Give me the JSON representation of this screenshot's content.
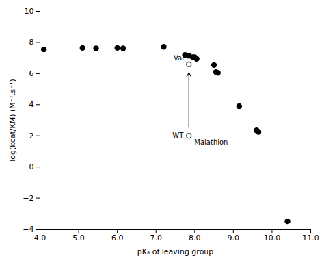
{
  "chart_data": {
    "type": "scatter",
    "xlabel": "pKₐ of leaving group",
    "ylabel": "log(kcat/KM) (M⁻¹.s⁻¹)",
    "xlim": [
      4,
      11
    ],
    "ylim": [
      -4,
      10
    ],
    "xticks": [
      4,
      5,
      6,
      7,
      8,
      9,
      10,
      11
    ],
    "yticks": [
      -4,
      -2,
      0,
      2,
      4,
      6,
      8,
      10
    ],
    "grid": false,
    "series": [
      {
        "marker": "circle",
        "color": "#000000",
        "x": [
          4.1,
          5.1,
          5.45,
          6.0,
          6.15,
          7.2,
          7.75,
          7.85,
          7.95,
          8.0,
          8.05,
          8.5,
          8.55,
          8.6,
          9.15,
          9.6,
          9.65,
          10.4
        ],
        "values": [
          7.55,
          7.65,
          7.62,
          7.65,
          7.62,
          7.72,
          7.2,
          7.15,
          7.05,
          7.05,
          6.95,
          6.55,
          6.1,
          6.05,
          3.9,
          2.35,
          2.25,
          -3.5
        ]
      },
      {
        "marker": "open_circle",
        "color": "#000000",
        "x": [
          7.85,
          7.85
        ],
        "values": [
          6.6,
          2.0
        ]
      }
    ],
    "arrows": [
      {
        "x": 7.85,
        "y_start": 2.55,
        "y_end": 6.05,
        "color": "#000000"
      }
    ],
    "annotations": [
      {
        "text": "Var",
        "x": 7.85,
        "y": 6.6
      },
      {
        "text": "WT",
        "x": 7.85,
        "y": 2.0
      },
      {
        "text": "Malathion",
        "x": 7.85,
        "y": 2.0
      }
    ]
  }
}
